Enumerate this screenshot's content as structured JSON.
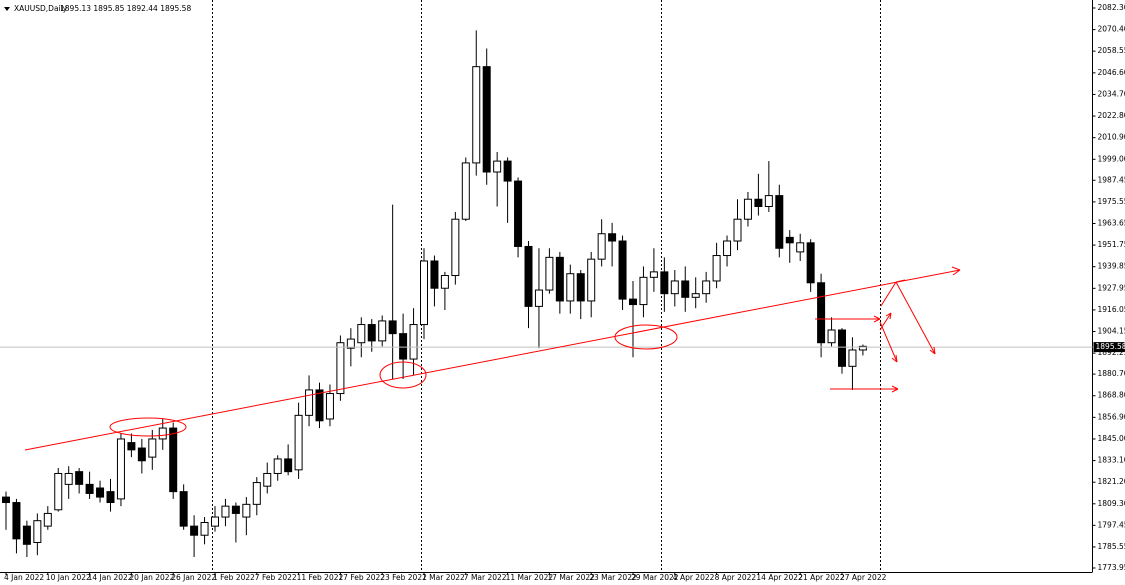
{
  "chart_data": {
    "type": "candlestick",
    "title": "XAUUSD,Daily",
    "subtitle": "1895.13 1895.85 1892.44 1895.58",
    "categories": [
      "4 Jan 2022",
      null,
      null,
      null,
      "10 Jan 2022",
      null,
      null,
      null,
      "14 Jan 2022",
      null,
      null,
      null,
      "20 Jan 2022",
      null,
      null,
      null,
      "26 Jan 2022",
      null,
      null,
      null,
      "1 Feb 2022",
      null,
      null,
      null,
      "7 Feb 2022",
      null,
      null,
      null,
      "11 Feb 2022",
      null,
      null,
      null,
      "17 Feb 2022",
      null,
      null,
      null,
      "23 Feb 2022",
      null,
      null,
      null,
      "1 Mar 2022",
      null,
      null,
      null,
      "7 Mar 2022",
      null,
      null,
      null,
      "11 Mar 2022",
      null,
      null,
      null,
      "17 Mar 2022",
      null,
      null,
      null,
      "23 Mar 2022",
      null,
      null,
      null,
      "29 Mar 2022",
      null,
      null,
      null,
      "4 Apr 2022",
      null,
      null,
      null,
      "8 Apr 2022",
      null,
      null,
      null,
      "14 Apr 2022",
      null,
      null,
      null,
      "21 Apr 2022",
      null,
      null,
      null,
      "27 Apr 2022",
      null,
      null
    ],
    "open": [
      1813,
      1810,
      1797,
      1788,
      1797,
      1806,
      1820,
      1827,
      1820,
      1818,
      1816,
      1812,
      1843,
      1840,
      1835,
      1845,
      1851,
      1816,
      1797,
      1792,
      1797,
      1802,
      1808,
      1802,
      1809,
      1819,
      1826,
      1834,
      1828,
      1858,
      1872,
      1856,
      1870,
      1895,
      1898,
      1908,
      1899,
      1910,
      1903,
      1889,
      1908,
      1943,
      1928,
      1935,
      1966,
      1997,
      2050,
      1992,
      1998,
      1987,
      1951,
      1918,
      1927,
      1945,
      1921,
      1936,
      1921,
      1944,
      1958,
      1954,
      1922,
      1919,
      1934,
      1937,
      1925,
      1932,
      1923,
      1925,
      1932,
      1946,
      1954,
      1966,
      1977,
      1973,
      1979,
      1956,
      1948,
      1953,
      1931,
      1898,
      1905,
      1885,
      1894
    ],
    "high": [
      1816,
      1812,
      1800,
      1804,
      1808,
      1829,
      1830,
      1829,
      1827,
      1822,
      1823,
      1848,
      1848,
      1845,
      1850,
      1856,
      1854,
      1820,
      1803,
      1802,
      1808,
      1812,
      1810,
      1813,
      1824,
      1832,
      1836,
      1842,
      1865,
      1880,
      1876,
      1875,
      1902,
      1906,
      1912,
      1911,
      1913,
      1974,
      1914,
      1917,
      1950,
      1946,
      1937,
      1970,
      2000,
      2070,
      2060,
      2003,
      2000,
      1989,
      1954,
      1950,
      1950,
      1948,
      1941,
      1938,
      1948,
      1966,
      1964,
      1957,
      1932,
      1940,
      1950,
      1945,
      1938,
      1940,
      1934,
      1937,
      1953,
      1957,
      1977,
      1981,
      1991,
      1998,
      1985,
      1960,
      1958,
      1955,
      1936,
      1912,
      1906,
      1901,
      1897
    ],
    "low": [
      1795,
      1782,
      1780,
      1781,
      1795,
      1805,
      1812,
      1815,
      1812,
      1810,
      1805,
      1808,
      1835,
      1826,
      1828,
      1839,
      1812,
      1795,
      1780,
      1787,
      1794,
      1797,
      1788,
      1792,
      1803,
      1815,
      1822,
      1825,
      1823,
      1852,
      1851,
      1852,
      1866,
      1885,
      1890,
      1893,
      1896,
      1878,
      1878,
      1880,
      1900,
      1918,
      1916,
      1930,
      1965,
      1990,
      1985,
      1973,
      1964,
      1945,
      1906,
      1895,
      1925,
      1914,
      1914,
      1911,
      1912,
      1940,
      1940,
      1916,
      1890,
      1912,
      1926,
      1915,
      1918,
      1915,
      1917,
      1920,
      1928,
      1940,
      1949,
      1962,
      1968,
      1970,
      1945,
      1942,
      1943,
      1926,
      1890,
      1896,
      1881,
      1872,
      1891
    ],
    "close": [
      1810,
      1790,
      1787,
      1800,
      1804,
      1826,
      1826,
      1820,
      1815,
      1813,
      1810,
      1845,
      1839,
      1833,
      1845,
      1851,
      1816,
      1797,
      1792,
      1799,
      1802,
      1808,
      1804,
      1809,
      1821,
      1826,
      1834,
      1827,
      1858,
      1872,
      1855,
      1870,
      1898,
      1900,
      1908,
      1899,
      1910,
      1903,
      1889,
      1908,
      1943,
      1928,
      1935,
      1966,
      1997,
      2050,
      1992,
      1998,
      1987,
      1951,
      1918,
      1927,
      1945,
      1921,
      1936,
      1921,
      1944,
      1958,
      1954,
      1922,
      1919,
      1934,
      1937,
      1925,
      1932,
      1923,
      1925,
      1932,
      1946,
      1954,
      1966,
      1977,
      1973,
      1979,
      1950,
      1953,
      1953,
      1931,
      1898,
      1905,
      1885,
      1894,
      1896
    ],
    "bull_color": "#ffffff",
    "bear_color": "#000000",
    "outline_color": "#000000",
    "last_price": 1895.58,
    "ylim": [
      1773.95,
      2082.3
    ],
    "yticks": [
      {
        "value": 2082.3,
        "label": "2082.30"
      },
      {
        "value": 2070.4,
        "label": "2070.40"
      },
      2058.55,
      {
        "value": 2046.6,
        "label": "2046.60"
      },
      {
        "value": 2034.7,
        "label": "2034.70"
      },
      {
        "value": 2022.8,
        "label": "2022.80"
      },
      {
        "value": 2010.9,
        "label": "2010.90"
      },
      {
        "value": 1999,
        "label": "1999.00"
      },
      1987.45,
      1975.55,
      1963.65,
      1951.75,
      1939.85,
      1927.95,
      1916.05,
      1904.15,
      1892.25,
      {
        "value": 1880.7,
        "label": "1880.70"
      },
      {
        "value": 1868.8,
        "label": "1868.80"
      },
      {
        "value": 1856.9,
        "label": "1856.90"
      },
      {
        "value": 1845,
        "label": "1845.00"
      },
      {
        "value": 1833.1,
        "label": "1833.10"
      },
      {
        "value": 1821.2,
        "label": "1821.20"
      },
      {
        "value": 1809.3,
        "label": "1809.30"
      },
      1797.45,
      1785.55,
      1773.95
    ],
    "grid": false
  }
}
